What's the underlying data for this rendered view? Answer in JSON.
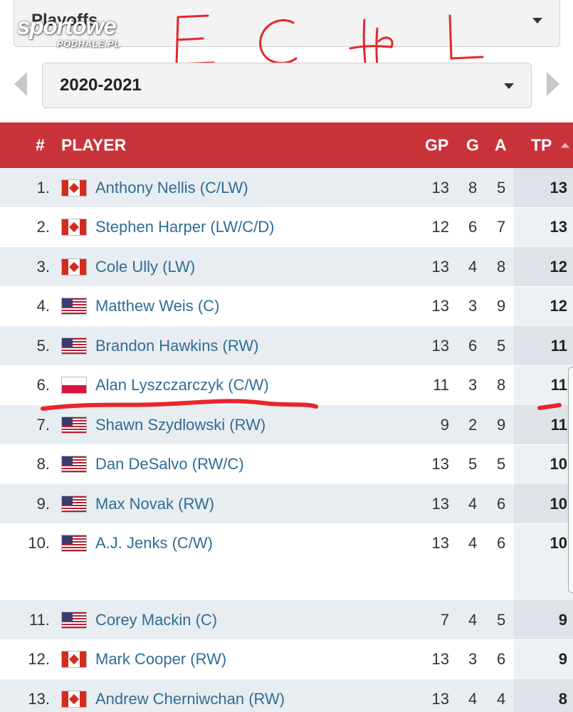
{
  "watermark": {
    "line1": "sportowe",
    "line2": "PODHALE.PL"
  },
  "handwritten_note": "ECHL",
  "filters": {
    "game_type": "Playoffs",
    "season": "2020-2021"
  },
  "table": {
    "headers": {
      "rank": "#",
      "player": "PLAYER",
      "gp": "GP",
      "g": "G",
      "a": "A",
      "tp": "TP"
    },
    "sort": {
      "column": "TP",
      "direction": "descending"
    },
    "rows": [
      {
        "rank": "1.",
        "flag": "canada-flag",
        "player": "Anthony Nellis (C/LW)",
        "gp": "13",
        "g": "8",
        "a": "5",
        "tp": "13"
      },
      {
        "rank": "2.",
        "flag": "canada-flag",
        "player": "Stephen Harper (LW/C/D)",
        "gp": "12",
        "g": "6",
        "a": "7",
        "tp": "13"
      },
      {
        "rank": "3.",
        "flag": "canada-flag",
        "player": "Cole Ully (LW)",
        "gp": "13",
        "g": "4",
        "a": "8",
        "tp": "12"
      },
      {
        "rank": "4.",
        "flag": "usa-flag",
        "player": "Matthew Weis (C)",
        "gp": "13",
        "g": "3",
        "a": "9",
        "tp": "12"
      },
      {
        "rank": "5.",
        "flag": "usa-flag",
        "player": "Brandon Hawkins (RW)",
        "gp": "13",
        "g": "6",
        "a": "5",
        "tp": "11"
      },
      {
        "rank": "6.",
        "flag": "poland-flag",
        "player": "Alan Lyszczarczyk (C/W)",
        "gp": "11",
        "g": "3",
        "a": "8",
        "tp": "11"
      },
      {
        "rank": "7.",
        "flag": "usa-flag",
        "player": "Shawn Szydlowski (RW)",
        "gp": "9",
        "g": "2",
        "a": "9",
        "tp": "11"
      },
      {
        "rank": "8.",
        "flag": "usa-flag",
        "player": "Dan DeSalvo (RW/C)",
        "gp": "13",
        "g": "5",
        "a": "5",
        "tp": "10"
      },
      {
        "rank": "9.",
        "flag": "usa-flag",
        "player": "Max Novak (RW)",
        "gp": "13",
        "g": "4",
        "a": "6",
        "tp": "10"
      },
      {
        "rank": "10.",
        "flag": "usa-flag",
        "player": "A.J. Jenks (C/W)",
        "gp": "13",
        "g": "4",
        "a": "6",
        "tp": "10"
      },
      {
        "rank": "11.",
        "flag": "usa-flag",
        "player": "Corey Mackin (C)",
        "gp": "7",
        "g": "4",
        "a": "5",
        "tp": "9"
      },
      {
        "rank": "12.",
        "flag": "canada-flag",
        "player": "Mark Cooper (RW)",
        "gp": "13",
        "g": "3",
        "a": "6",
        "tp": "9"
      },
      {
        "rank": "13.",
        "flag": "canada-flag",
        "player": "Andrew Cherniwchan (RW)",
        "gp": "13",
        "g": "4",
        "a": "4",
        "tp": "8"
      }
    ]
  },
  "colors": {
    "header_bg": "#c8333a",
    "link": "#2f6d95",
    "annotation": "#e8262b"
  }
}
